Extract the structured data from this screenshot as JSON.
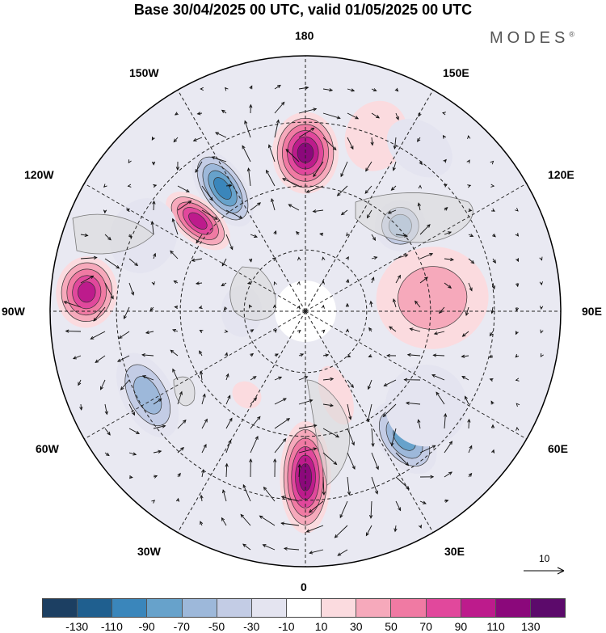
{
  "title": "Base 30/04/2025 00 UTC, valid 01/05/2025 00 UTC",
  "brand": "MODES",
  "brand_mark": "®",
  "longitude_labels": {
    "top": "180",
    "bottom": "0",
    "left": "90W",
    "right": "90E",
    "upper_left_1": "150W",
    "upper_left_2": "120W",
    "upper_right_1": "150E",
    "upper_right_2": "120E",
    "lower_left_1": "60W",
    "lower_left_2": "30W",
    "lower_right_1": "60E",
    "lower_right_2": "30E"
  },
  "reference_vector": "10",
  "colorbar": {
    "colors": [
      "#1c3f62",
      "#1f5f8f",
      "#3a86bb",
      "#67a2cb",
      "#9db8da",
      "#c3cce5",
      "#e4e4f0",
      "#ffffff",
      "#fbdbdf",
      "#f6a9bb",
      "#f07aa3",
      "#e1489c",
      "#bd1b8c",
      "#8b087b",
      "#5c0a6b"
    ],
    "ticks": [
      "-130",
      "-110",
      "-90",
      "-70",
      "-50",
      "-30",
      "-10",
      "10",
      "30",
      "50",
      "70",
      "90",
      "110",
      "130"
    ]
  },
  "anomalies": [
    {
      "lon": 180,
      "dist": 0.62,
      "value": 120,
      "rx": 0.13,
      "ry": 0.16
    },
    {
      "lon": 158,
      "dist": 0.74,
      "value": 30,
      "rx": 0.12,
      "ry": 0.14
    },
    {
      "lon": -146,
      "dist": 0.58,
      "value": -100,
      "rx": 0.09,
      "ry": 0.17
    },
    {
      "lon": -130,
      "dist": 0.55,
      "value": 110,
      "rx": 0.08,
      "ry": 0.15
    },
    {
      "lon": -95,
      "dist": 0.86,
      "value": 100,
      "rx": 0.14,
      "ry": 0.12
    },
    {
      "lon": -115,
      "dist": 0.7,
      "value": -30,
      "rx": 0.15,
      "ry": 0.13
    },
    {
      "lon": -62,
      "dist": 0.7,
      "value": -60,
      "rx": 0.18,
      "ry": 0.1
    },
    {
      "lon": 0,
      "dist": 0.65,
      "value": 120,
      "rx": 0.1,
      "ry": 0.22
    },
    {
      "lon": 38,
      "dist": 0.63,
      "value": -80,
      "rx": 0.1,
      "ry": 0.16
    },
    {
      "lon": 52,
      "dist": 0.6,
      "value": -30,
      "rx": 0.16,
      "ry": 0.16
    },
    {
      "lon": 96,
      "dist": 0.5,
      "value": 40,
      "rx": 0.2,
      "ry": 0.22
    },
    {
      "lon": 132,
      "dist": 0.5,
      "value": -70,
      "rx": 0.1,
      "ry": 0.1
    },
    {
      "lon": 145,
      "dist": 0.78,
      "value": -20,
      "rx": 0.14,
      "ry": 0.1
    },
    {
      "lon": -35,
      "dist": 0.4,
      "value": 20,
      "rx": 0.06,
      "ry": 0.05
    },
    {
      "lon": -90,
      "dist": 0.25,
      "value": -20,
      "rx": 0.1,
      "ry": 0.08
    },
    {
      "lon": 20,
      "dist": 0.35,
      "value": 30,
      "rx": 0.06,
      "ry": 0.12
    }
  ]
}
